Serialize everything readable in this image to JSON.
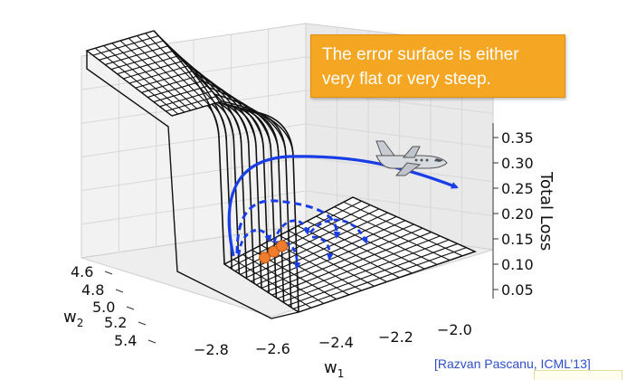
{
  "annotation": "The error surface is either very flat or very steep.",
  "citation": "[Razvan Pascanu, ICML’13]",
  "colors": {
    "surface_line": "#111111",
    "trajectory": "#1a3ee6",
    "point": "#f07c2c",
    "callout_bg": "#f5a623",
    "citation": "#2e4fc9"
  },
  "icons": {
    "airplane": "airplane-icon"
  },
  "chart_data": {
    "type": "surface-3d",
    "title": "",
    "xlabel": "w1",
    "ylabel": "w2",
    "zlabel": "Total Loss",
    "x_ticks": [
      "−2.8",
      "−2.6",
      "−2.4",
      "−2.2",
      "−2.0"
    ],
    "y_ticks": [
      "4.6",
      "4.8",
      "5.0",
      "5.2",
      "5.4"
    ],
    "z_ticks": [
      "0.35",
      "0.30",
      "0.25",
      "0.20",
      "0.15",
      "0.10",
      "0.05"
    ],
    "xlim": [
      -2.9,
      -2.0
    ],
    "ylim": [
      4.6,
      5.4
    ],
    "zlim": [
      0.05,
      0.35
    ],
    "cliff_w1": -2.72,
    "surface": "flat low-loss plateau bounded by a near-vertical cliff rising to a high flat ridge",
    "points": [
      {
        "w1": -2.72,
        "w2": 5.1
      },
      {
        "w1": -2.58,
        "w2": 5.05
      },
      {
        "w1": -2.45,
        "w2": 5.0
      }
    ],
    "grid": true
  }
}
